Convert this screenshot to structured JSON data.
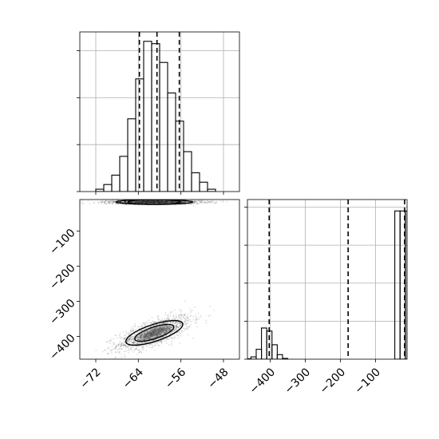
{
  "chart_data": {
    "type": "corner",
    "variables": [
      {
        "title": "",
        "label": "",
        "range": [
          -75,
          -45
        ],
        "ticks": [
          -72,
          -64,
          -56,
          -48
        ],
        "tick_labels": [
          "−72",
          "−64",
          "−56",
          "−48"
        ],
        "quantiles": [
          -63.8,
          -60.5,
          -56.3
        ]
      },
      {
        "title": "",
        "label": "",
        "range": [
          -465,
          -10
        ],
        "ticks": [
          -400,
          -300,
          -200,
          -100
        ],
        "tick_labels": [
          "−400",
          "−300",
          "−200",
          "−100"
        ],
        "quantiles": [
          -403,
          -178,
          -17
        ]
      }
    ],
    "histograms": [
      {
        "variable": 0,
        "bin_edges": [
          -72,
          -70.5,
          -69,
          -67.5,
          -66,
          -64.5,
          -63,
          -61.5,
          -60,
          -58.5,
          -57,
          -55.5,
          -54,
          -52.5,
          -51,
          -49.5
        ],
        "counts": [
          1,
          3,
          7,
          15,
          31,
          48,
          64,
          63,
          55,
          42,
          30,
          17,
          8,
          4,
          1
        ],
        "ylim": [
          0,
          68
        ],
        "yticks": [
          0,
          20,
          40,
          60
        ],
        "grid": true
      },
      {
        "variable": 1,
        "bin_edges": [
          -470,
          -455,
          -440,
          -425,
          -410,
          -395,
          -380,
          -365,
          -350,
          -335,
          -320,
          -305,
          -45,
          -30,
          -15,
          -10
        ],
        "counts": [
          1,
          6,
          26,
          82,
          74,
          38,
          12,
          2,
          0,
          0,
          0,
          0,
          390,
          390,
          390
        ],
        "ylim": [
          0,
          420
        ],
        "yticks": [
          0,
          100,
          200,
          300,
          400
        ],
        "grid": true
      }
    ],
    "scatter_2d": {
      "x_variable": 0,
      "y_variable": 1,
      "clusters": [
        {
          "x_mean": -61,
          "y_mean": -390,
          "x_sd": 3.5,
          "y_sd": 25,
          "corr": 0.7,
          "n": 1500
        },
        {
          "x_mean": -61,
          "y_mean": -17,
          "x_sd": 4.5,
          "y_sd": 3,
          "corr": 0,
          "n": 1500
        }
      ],
      "contour_levels": [
        0.5,
        1.0
      ]
    },
    "grid": true
  }
}
